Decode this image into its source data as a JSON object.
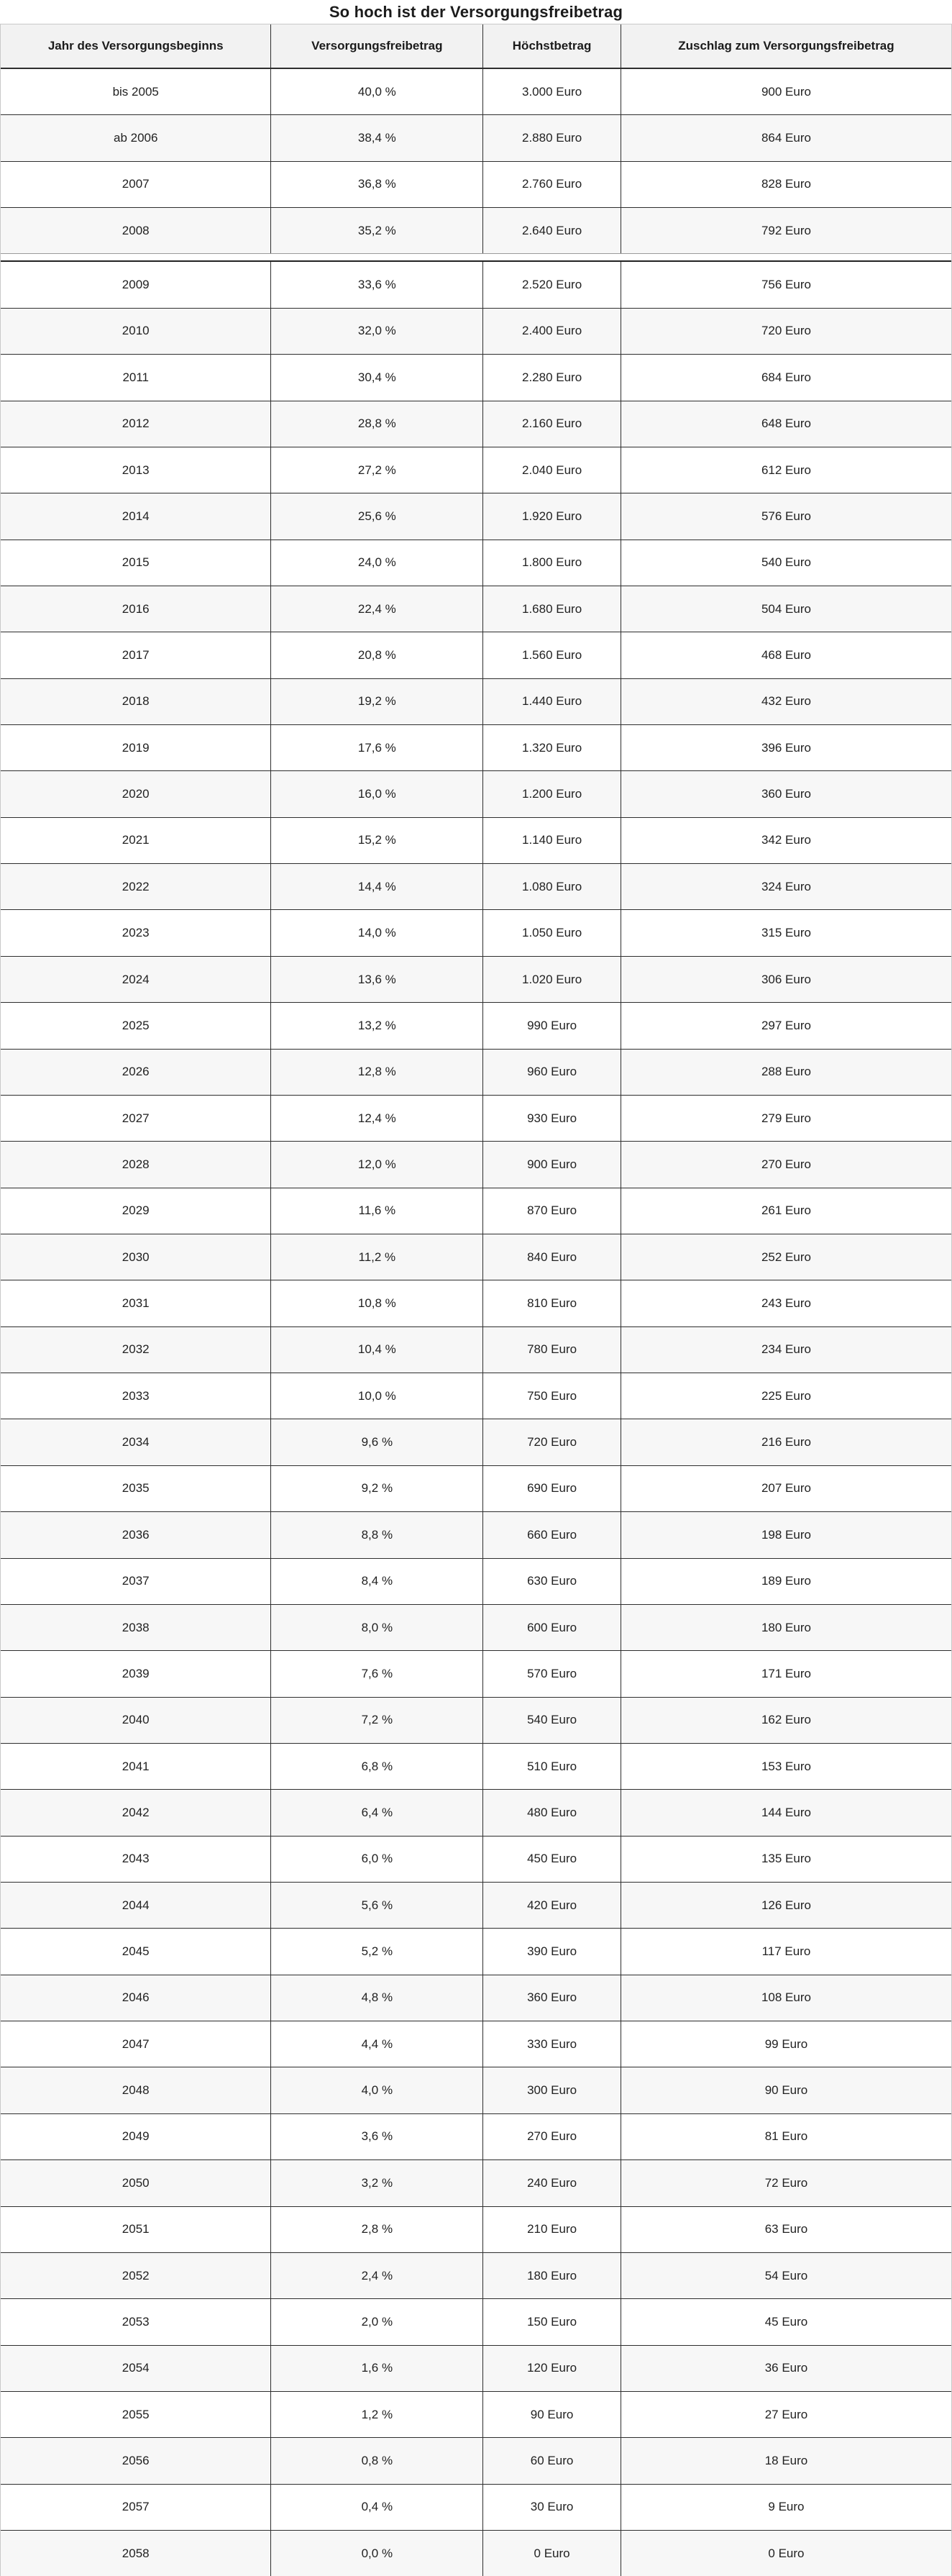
{
  "title": "So hoch ist der Versorgungsfreibetrag",
  "colors": {
    "header_bg": "#f2f2f2",
    "alt_row_bg": "#f7f7f7",
    "grid_dark": "#2e2e2e",
    "outer_border": "#c9c9c9",
    "text": "#1f1f1f"
  },
  "chart_data": {
    "type": "table",
    "title": "So hoch ist der Versorgungsfreibetrag",
    "columns": [
      "Jahr des Versorgungsbeginns",
      "Versorgungsfreibetrag",
      "Höchstbetrag",
      "Zuschlag zum Versorgungsfreibetrag"
    ],
    "rows": [
      [
        "bis 2005",
        "40,0 %",
        "3.000 Euro",
        "900 Euro"
      ],
      [
        "ab 2006",
        "38,4 %",
        "2.880 Euro",
        "864 Euro"
      ],
      [
        "2007",
        "36,8 %",
        "2.760 Euro",
        "828 Euro"
      ],
      [
        "2008",
        "35,2 %",
        "2.640 Euro",
        "792 Euro"
      ],
      [
        "2009",
        "33,6 %",
        "2.520 Euro",
        "756 Euro"
      ],
      [
        "2010",
        "32,0 %",
        "2.400 Euro",
        "720 Euro"
      ],
      [
        "2011",
        "30,4 %",
        "2.280 Euro",
        "684 Euro"
      ],
      [
        "2012",
        "28,8 %",
        "2.160 Euro",
        "648 Euro"
      ],
      [
        "2013",
        "27,2 %",
        "2.040 Euro",
        "612 Euro"
      ],
      [
        "2014",
        "25,6 %",
        "1.920 Euro",
        "576 Euro"
      ],
      [
        "2015",
        "24,0 %",
        "1.800 Euro",
        "540 Euro"
      ],
      [
        "2016",
        "22,4 %",
        "1.680 Euro",
        "504 Euro"
      ],
      [
        "2017",
        "20,8 %",
        "1.560 Euro",
        "468 Euro"
      ],
      [
        "2018",
        "19,2 %",
        "1.440 Euro",
        "432 Euro"
      ],
      [
        "2019",
        "17,6 %",
        "1.320 Euro",
        "396 Euro"
      ],
      [
        "2020",
        "16,0 %",
        "1.200 Euro",
        "360 Euro"
      ],
      [
        "2021",
        "15,2 %",
        "1.140 Euro",
        "342 Euro"
      ],
      [
        "2022",
        "14,4 %",
        "1.080 Euro",
        "324 Euro"
      ],
      [
        "2023",
        "14,0 %",
        "1.050 Euro",
        "315 Euro"
      ],
      [
        "2024",
        "13,6 %",
        "1.020 Euro",
        "306 Euro"
      ],
      [
        "2025",
        "13,2 %",
        "990 Euro",
        "297 Euro"
      ],
      [
        "2026",
        "12,8 %",
        "960 Euro",
        "288 Euro"
      ],
      [
        "2027",
        "12,4 %",
        "930 Euro",
        "279 Euro"
      ],
      [
        "2028",
        "12,0 %",
        "900 Euro",
        "270 Euro"
      ],
      [
        "2029",
        "11,6 %",
        "870 Euro",
        "261 Euro"
      ],
      [
        "2030",
        "11,2 %",
        "840 Euro",
        "252 Euro"
      ],
      [
        "2031",
        "10,8 %",
        "810 Euro",
        "243 Euro"
      ],
      [
        "2032",
        "10,4 %",
        "780 Euro",
        "234 Euro"
      ],
      [
        "2033",
        "10,0 %",
        "750 Euro",
        "225 Euro"
      ],
      [
        "2034",
        "9,6 %",
        "720 Euro",
        "216 Euro"
      ],
      [
        "2035",
        "9,2 %",
        "690 Euro",
        "207 Euro"
      ],
      [
        "2036",
        "8,8 %",
        "660 Euro",
        "198 Euro"
      ],
      [
        "2037",
        "8,4 %",
        "630 Euro",
        "189 Euro"
      ],
      [
        "2038",
        "8,0 %",
        "600 Euro",
        "180 Euro"
      ],
      [
        "2039",
        "7,6 %",
        "570 Euro",
        "171 Euro"
      ],
      [
        "2040",
        "7,2 %",
        "540 Euro",
        "162 Euro"
      ],
      [
        "2041",
        "6,8 %",
        "510 Euro",
        "153 Euro"
      ],
      [
        "2042",
        "6,4 %",
        "480 Euro",
        "144 Euro"
      ],
      [
        "2043",
        "6,0 %",
        "450 Euro",
        "135 Euro"
      ],
      [
        "2044",
        "5,6 %",
        "420 Euro",
        "126 Euro"
      ],
      [
        "2045",
        "5,2 %",
        "390 Euro",
        "117 Euro"
      ],
      [
        "2046",
        "4,8 %",
        "360 Euro",
        "108 Euro"
      ],
      [
        "2047",
        "4,4 %",
        "330 Euro",
        "99 Euro"
      ],
      [
        "2048",
        "4,0 %",
        "300 Euro",
        "90 Euro"
      ],
      [
        "2049",
        "3,6 %",
        "270 Euro",
        "81 Euro"
      ],
      [
        "2050",
        "3,2 %",
        "240 Euro",
        "72 Euro"
      ],
      [
        "2051",
        "2,8 %",
        "210 Euro",
        "63 Euro"
      ],
      [
        "2052",
        "2,4 %",
        "180 Euro",
        "54 Euro"
      ],
      [
        "2053",
        "2,0 %",
        "150 Euro",
        "45 Euro"
      ],
      [
        "2054",
        "1,6 %",
        "120 Euro",
        "36 Euro"
      ],
      [
        "2055",
        "1,2 %",
        "90 Euro",
        "27 Euro"
      ],
      [
        "2056",
        "0,8 %",
        "60 Euro",
        "18 Euro"
      ],
      [
        "2057",
        "0,4 %",
        "30 Euro",
        "9 Euro"
      ],
      [
        "2058",
        "0,0 %",
        "0 Euro",
        "0 Euro"
      ]
    ]
  }
}
